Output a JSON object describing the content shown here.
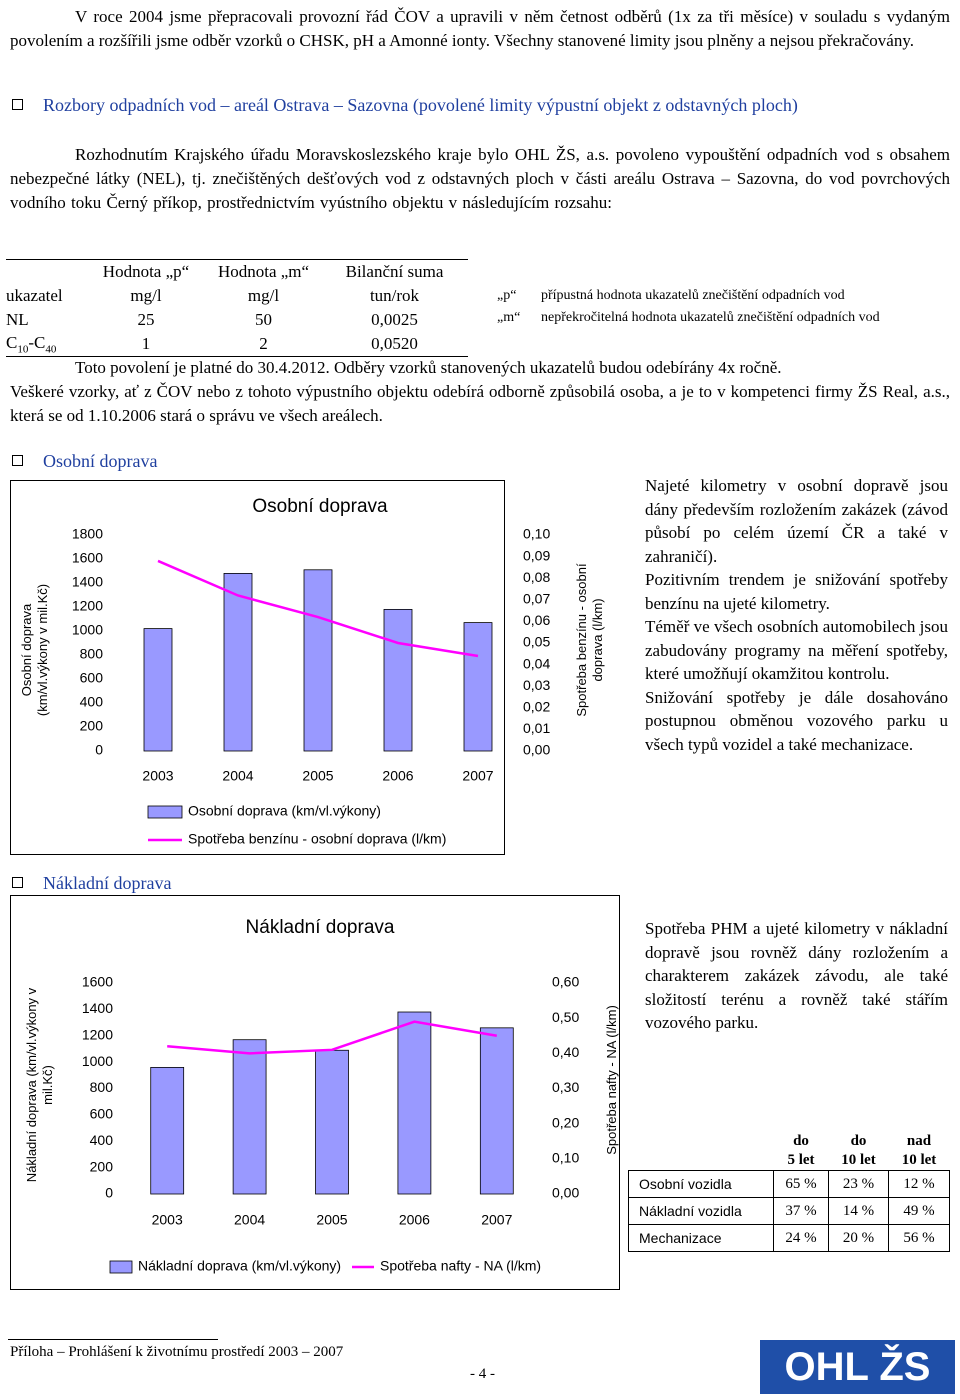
{
  "intro": "V roce 2004 jsme přepracovali provozní řád ČOV a upravili v něm četnost odběrů (1x za tři měsíce) v souladu s vydaným povolením a rozšířili jsme odběr vzorků o CHSK, pH a Amonné ionty. Všechny stanovené limity jsou plněny a nejsou překračovány.",
  "section1": {
    "heading": "Rozbory odpadních vod – areál Ostrava – Sazovna (povolené limity výpustní objekt z odstavných ploch)",
    "paragraph": "Rozhodnutím Krajského úřadu Moravskoslezského kraje bylo OHL ŽS, a.s. povoleno vypouštění odpadních vod s obsahem nebezpečné látky (NEL), tj. znečištěných dešťových vod z odstavných ploch v části areálu Ostrava – Sazovna, do vod povrchových vodního toku Černý příkop, prostřednictvím vyústního objektu v následujícím rozsahu:",
    "table": {
      "row_header": "ukazatel",
      "columns": [
        {
          "title": "Hodnota „p“",
          "unit": "mg/l"
        },
        {
          "title": "Hodnota „m“",
          "unit": "mg/l"
        },
        {
          "title": "Bilanční suma",
          "unit": "tun/rok"
        }
      ],
      "rows": [
        {
          "label": [
            "NL"
          ],
          "values": [
            "25",
            "50",
            "0,0025"
          ]
        },
        {
          "label": [
            "C",
            "10",
            "-C",
            "40"
          ],
          "values": [
            "1",
            "2",
            "0,0520"
          ]
        }
      ]
    },
    "notes": [
      {
        "key": "„p“",
        "text": "přípustná hodnota ukazatelů znečištění odpadních vod"
      },
      {
        "key": "„m“",
        "text": "nepřekročitelná hodnota ukazatelů znečištění odpadních vod"
      }
    ],
    "validity": "Toto povolení je platné do 30.4.2012. Odběry vzorků stanovených ukazatelů budou odebírány 4x ročně.",
    "sampling": "Veškeré vzorky, ať z ČOV nebo z tohoto výpustního objektu odebírá odborně způsobilá osoba, a je to v kompetenci firmy ŽS Real, a.s., která se od 1.10.2006 stará o správu ve všech areálech."
  },
  "section2": {
    "heading": "Osobní doprava",
    "text": [
      "Najeté kilometry v osobní dopravě jsou dány především rozložením zakázek (závod působí po celém území ČR a také v zahraničí).",
      "Pozitivním trendem je snižování spotřeby benzínu na ujeté kilometry.",
      "Téměř ve všech osobních automobilech jsou zabudovány programy na měření spotřeby, které umožňují okamžitou kontrolu.",
      "Snižování spotřeby je dále dosahováno postupnou obměnou vozového parku u všech typů vozidel a také mechanizace."
    ]
  },
  "section3": {
    "heading": "Nákladní doprava",
    "text": "Spotřeba PHM a ujeté kilometry v nákladní dopravě jsou rovněž dány rozložením a charakterem zakázek závodu, ale také složitostí terénu a rovněž také stářím vozového parku."
  },
  "chart_data": [
    {
      "type": "bar",
      "title": "Osobní doprava",
      "y_label": "Osobní doprava (km/vl.výkony v mil.Kč)",
      "y2_label": "Spotřeba benzínu - osobní doprava (l/km)",
      "categories": [
        "2003",
        "2004",
        "2005",
        "2006",
        "2007"
      ],
      "series": [
        {
          "name": "Osobní doprava (km/vl.výkony)",
          "type": "bar",
          "color": "#9999ff",
          "values": [
            1020,
            1480,
            1510,
            1180,
            1070
          ]
        },
        {
          "name": "Spotřeba benzínu - osobní doprava (l/km)",
          "type": "line",
          "axis": "y2",
          "color": "#ff00ff",
          "values": [
            0.088,
            0.072,
            0.062,
            0.05,
            0.044
          ]
        }
      ],
      "ylim": [
        0,
        1800
      ],
      "yticks": [
        0,
        200,
        400,
        600,
        800,
        1000,
        1200,
        1400,
        1600,
        1800
      ],
      "y2lim": [
        0,
        0.1
      ],
      "y2ticks": [
        {
          "value": 0,
          "label": "0,00"
        },
        {
          "value": 0.01,
          "label": "0,01"
        },
        {
          "value": 0.02,
          "label": "0,02"
        },
        {
          "value": 0.03,
          "label": "0,03"
        },
        {
          "value": 0.04,
          "label": "0,04"
        },
        {
          "value": 0.05,
          "label": "0,05"
        },
        {
          "value": 0.06,
          "label": "0,06"
        },
        {
          "value": 0.07,
          "label": "0,07"
        },
        {
          "value": 0.08,
          "label": "0,08"
        },
        {
          "value": 0.09,
          "label": "0,09"
        },
        {
          "value": 0.1,
          "label": "0,10"
        }
      ],
      "grid": false,
      "legend": "bottom"
    },
    {
      "type": "bar",
      "title": "Nákladní doprava",
      "y_label": "Nákladní doprava (km/vl.výkony v mil.Kč)",
      "y2_label": "Spotřeba nafty - NA (l/km)",
      "categories": [
        "2003",
        "2004",
        "2005",
        "2006",
        "2007"
      ],
      "series": [
        {
          "name": "Nákladní doprava (km/vl.výkony)",
          "type": "bar",
          "color": "#9999ff",
          "values": [
            960,
            1170,
            1090,
            1380,
            1260
          ]
        },
        {
          "name": "Spotřeba nafty - NA (l/km)",
          "type": "line",
          "axis": "y2",
          "color": "#ff00ff",
          "values": [
            0.42,
            0.4,
            0.41,
            0.49,
            0.45
          ]
        }
      ],
      "ylim": [
        0,
        1600
      ],
      "yticks": [
        0,
        200,
        400,
        600,
        800,
        1000,
        1200,
        1400,
        1600
      ],
      "y2lim": [
        0,
        0.6
      ],
      "y2ticks": [
        {
          "value": 0,
          "label": "0,00"
        },
        {
          "value": 0.1,
          "label": "0,10"
        },
        {
          "value": 0.2,
          "label": "0,20"
        },
        {
          "value": 0.3,
          "label": "0,30"
        },
        {
          "value": 0.4,
          "label": "0,40"
        },
        {
          "value": 0.5,
          "label": "0,50"
        },
        {
          "value": 0.6,
          "label": "0,60"
        }
      ],
      "grid": false,
      "legend": "bottom"
    }
  ],
  "age_table": {
    "columns": [
      [
        "do",
        "5 let"
      ],
      [
        "do",
        "10 let"
      ],
      [
        "nad",
        "10 let"
      ]
    ],
    "rows": [
      {
        "label": "Osobní vozidla",
        "values": [
          "65 %",
          "23 %",
          "12 %"
        ]
      },
      {
        "label": "Nákladní vozidla",
        "values": [
          "37 %",
          "14 %",
          "49 %"
        ]
      },
      {
        "label": "Mechanizace",
        "values": [
          "24 %",
          "20 %",
          "56 %"
        ]
      }
    ]
  },
  "footer": {
    "text": "Příloha – Prohlášení k životnímu prostředí 2003 – 2007",
    "page": "- 4 -",
    "logo": "OHL ŽS"
  }
}
